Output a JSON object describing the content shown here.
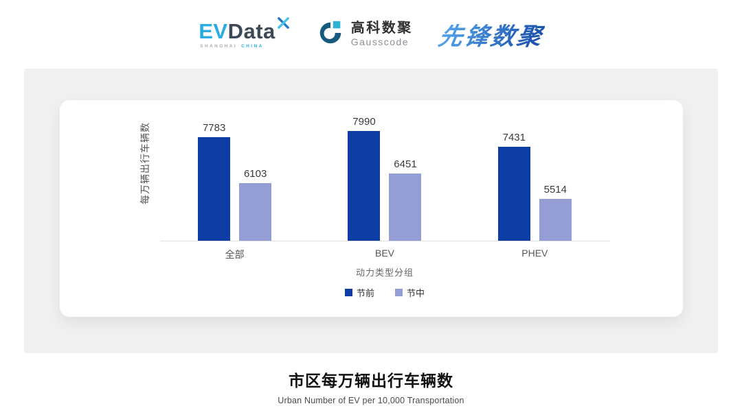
{
  "header": {
    "evdata": {
      "ev": "EV",
      "data": "Data",
      "sub1": "SHANGHAI",
      "sub2": "CHINA"
    },
    "gausscode": {
      "cn": "高科数聚",
      "en": "Gausscode"
    },
    "pioneer": {
      "text": "先锋数聚"
    }
  },
  "chart_data": {
    "type": "bar",
    "categories": [
      "全部",
      "BEV",
      "PHEV"
    ],
    "series": [
      {
        "name": "节前",
        "color": "#0D3DA5",
        "values": [
          7783,
          7990,
          7431
        ]
      },
      {
        "name": "节中",
        "color": "#949ED4",
        "values": [
          6103,
          6451,
          5514
        ]
      }
    ],
    "ylabel": "每万辆出行车辆数",
    "xlabel": "动力类型分组",
    "ylim": [
      4000,
      8500
    ],
    "grid": false,
    "legend_position": "bottom",
    "axis_line_color": "#E0E0E0"
  },
  "footer": {
    "title": "市区每万辆出行车辆数",
    "subtitle": "Urban Number of EV per 10,000 Transportation"
  }
}
